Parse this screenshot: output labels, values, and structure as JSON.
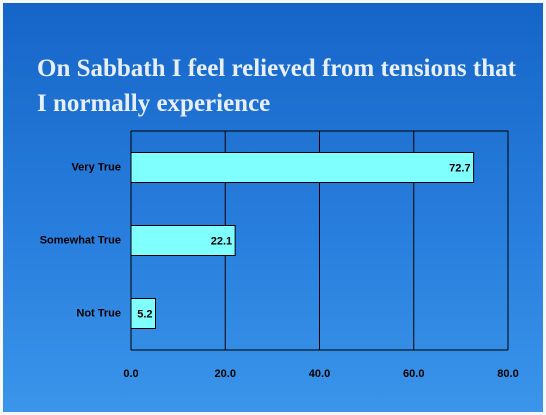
{
  "chart_data": {
    "type": "hbar",
    "title": "On Sabbath I feel relieved from tensions that I normally experience",
    "categories": [
      "Very True",
      "Somewhat True",
      "Not True"
    ],
    "values": [
      72.7,
      22.1,
      5.2
    ],
    "color": "#80ffff",
    "xlim": [
      0,
      80
    ],
    "xticks": [
      {
        "value": 0,
        "label": "0.0"
      },
      {
        "value": 20,
        "label": "20.0"
      },
      {
        "value": 40,
        "label": "40.0"
      },
      {
        "value": 60,
        "label": "60.0"
      },
      {
        "value": 80,
        "label": "80.0"
      }
    ],
    "grid": true
  }
}
